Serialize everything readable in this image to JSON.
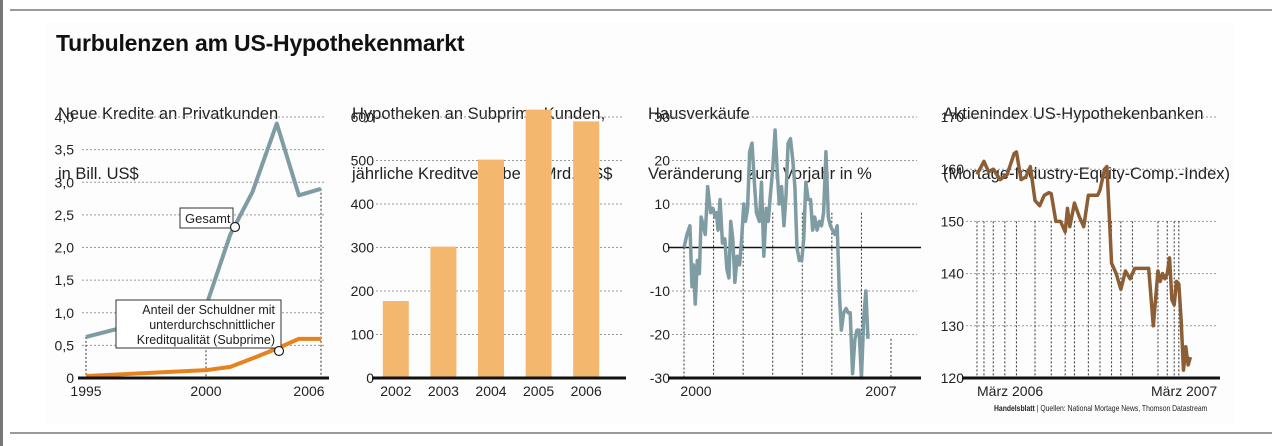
{
  "title": "Turbulenzen am US-Hypothekenmarkt",
  "credit": {
    "brand": "Handelsblatt",
    "separator": " | ",
    "sources": "Quellen: National Mortage News, Thomson Datastream"
  },
  "colors": {
    "gray_line": "#7f9ca3",
    "orange_line": "#e8821e",
    "bar": "#f4b76e",
    "brown_line": "#8c5e36",
    "grid": "#999999",
    "axis": "#111111"
  },
  "chart_data": [
    {
      "type": "line",
      "title": "Neue Kredite an Privatkunden\nin Bill. US$",
      "subtitle_lines": [
        "Neue Kredite an Privatkunden",
        "in Bill. US$"
      ],
      "xlabel": "",
      "ylabel": "",
      "xlim": [
        1995,
        2006
      ],
      "ylim": [
        0,
        4.0
      ],
      "yticks": [
        0,
        0.5,
        1.0,
        1.5,
        2.0,
        2.5,
        3.0,
        3.5,
        4.0
      ],
      "ytick_labels": [
        "0",
        "0,5",
        "1,0",
        "1,5",
        "2,0",
        "2,5",
        "3,0",
        "3,5",
        "4,0"
      ],
      "xticks": [
        1995,
        2000,
        2006
      ],
      "xtick_labels": [
        "1995",
        "2000",
        "2006"
      ],
      "grid": true,
      "series": [
        {
          "name": "Gesamt",
          "x": [
            1995,
            2000,
            2001.1,
            2002.1,
            2003.2,
            2004.2,
            2005.2
          ],
          "values": [
            0.63,
            1.1,
            2.2,
            2.85,
            3.9,
            2.8,
            2.9
          ]
        },
        {
          "name": "Anteil der Schuldner mit unterdurchschnittlicher Kreditqualität (Subprime)",
          "x": [
            1995,
            2000,
            2001.1,
            2002.1,
            2003.2,
            2004.2,
            2005.2
          ],
          "values": [
            0.03,
            0.12,
            0.17,
            0.3,
            0.45,
            0.6,
            0.6
          ]
        }
      ],
      "annotations": [
        {
          "text": "Gesamt",
          "x": 2001.35,
          "y": 2.33
        },
        {
          "text": "Anteil der Schuldner mit\nunterdurchschnittlicher\nKreditqualität (Subprime)",
          "lines": [
            "Anteil der Schuldner mit",
            "unterdurchschnittlicher",
            "Kreditqualität (Subprime)"
          ],
          "x": 2003.0,
          "y": 0.42
        }
      ]
    },
    {
      "type": "bar",
      "title": "Hypotheken an Subprime-Kunden,\njährliche Kreditvergabe in Mrd. US$",
      "subtitle_lines": [
        "Hypotheken an Subprime-Kunden,",
        "jährliche Kreditvergabe in Mrd. US$"
      ],
      "categories": [
        "2002",
        "2003",
        "2004",
        "2005",
        "2006"
      ],
      "values": [
        177,
        302,
        502,
        617,
        590
      ],
      "ylim": [
        0,
        600
      ],
      "yticks": [
        0,
        100,
        200,
        300,
        400,
        500,
        600
      ],
      "ytick_labels": [
        "0",
        "100",
        "200",
        "300",
        "400",
        "500",
        "600"
      ],
      "grid": true,
      "xlabel": "",
      "ylabel": ""
    },
    {
      "type": "line",
      "title": "Hausverkäufe\nVeränderung zum Vorjahr in %",
      "subtitle_lines": [
        "Hausverkäufe",
        "Veränderung zum Vorjahr in %"
      ],
      "xlim": [
        2000,
        2007.3
      ],
      "ylim": [
        -30,
        30
      ],
      "yticks": [
        -30,
        -20,
        -10,
        0,
        10,
        20,
        30
      ],
      "ytick_labels": [
        "-30",
        "-20",
        "-10",
        "0",
        "10",
        "20",
        "30"
      ],
      "xticks": [
        2000,
        2007
      ],
      "xtick_labels": [
        "2000",
        "2007"
      ],
      "grid": true,
      "series": [
        {
          "name": "Hausverkäufe",
          "x": [
            2000.0,
            2000.1,
            2000.2,
            2000.27,
            2000.32,
            2000.38,
            2000.45,
            2000.52,
            2000.58,
            2000.65,
            2000.72,
            2000.8,
            2000.9,
            2000.98,
            2001.05,
            2001.1,
            2001.15,
            2001.22,
            2001.3,
            2001.38,
            2001.45,
            2001.52,
            2001.58,
            2001.65,
            2001.72,
            2001.8,
            2001.88,
            2001.95,
            2002.02,
            2002.08,
            2002.15,
            2002.22,
            2002.3,
            2002.38,
            2002.45,
            2002.55,
            2002.62,
            2002.7,
            2002.78,
            2002.85,
            2002.92,
            2003.0,
            2003.08,
            2003.15,
            2003.22,
            2003.3,
            2003.38,
            2003.45,
            2003.52,
            2003.6,
            2003.68,
            2003.75,
            2003.82,
            2003.9,
            2003.98,
            2004.05,
            2004.12,
            2004.2,
            2004.28,
            2004.35,
            2004.42,
            2004.5,
            2004.58,
            2004.65,
            2004.72,
            2004.8,
            2004.88,
            2004.95,
            2005.02,
            2005.1,
            2005.18,
            2005.25,
            2005.32,
            2005.4,
            2005.48,
            2005.55,
            2005.62,
            2005.7,
            2005.78,
            2005.85,
            2005.92,
            2006.0,
            2006.08,
            2006.15,
            2006.22,
            2006.3,
            2006.38,
            2006.45,
            2006.52,
            2006.6,
            2006.68,
            2006.75,
            2006.82,
            2006.9,
            2006.97
          ],
          "values": [
            0,
            3,
            5,
            -9,
            -4,
            -13,
            -3,
            -6,
            7,
            5,
            3,
            14,
            8,
            9,
            7,
            8,
            4,
            11,
            1,
            2,
            -5,
            -7,
            6,
            2,
            -8,
            -2,
            -4,
            2,
            10,
            6,
            9,
            22,
            24,
            15,
            8,
            6,
            15,
            -2,
            9,
            6,
            12,
            18,
            27,
            18,
            10,
            14,
            5,
            12,
            24,
            25,
            20,
            14,
            0,
            -3,
            -3,
            2,
            15,
            11,
            11,
            4,
            7,
            4,
            6,
            5,
            8,
            22,
            7,
            5,
            4,
            3,
            5,
            -10,
            -19,
            -15,
            -14,
            -15,
            -15,
            -29,
            -21,
            -19,
            -19,
            -30,
            -16,
            -10,
            -21,
            -21,
            -21,
            -21,
            -21,
            -21,
            -21,
            -21,
            -21,
            -21,
            -21
          ]
        }
      ]
    },
    {
      "type": "line",
      "title": "Aktienindex US-Hypothekenbanken\n(Mortage-Industry-Equity-Comp.-Index)",
      "subtitle_lines": [
        "Aktienindex US-Hypothekenbanken",
        "(Mortage-Industry-Equity-Comp.-Index)"
      ],
      "xlim": [
        0,
        100
      ],
      "ylim": [
        120,
        170
      ],
      "yticks": [
        120,
        130,
        140,
        150,
        160,
        170
      ],
      "ytick_labels": [
        "120",
        "130",
        "140",
        "150",
        "160",
        "170"
      ],
      "xticks": [
        3,
        91
      ],
      "xtick_labels": [
        "März 2006",
        "März 2007"
      ],
      "grid": true,
      "series": [
        {
          "name": "Index",
          "x": [
            0,
            3,
            5,
            7,
            10,
            13,
            16,
            17,
            19,
            21,
            23,
            25,
            27,
            29,
            31,
            32,
            34,
            36,
            38,
            39,
            40,
            42,
            44,
            46,
            48,
            50,
            52,
            53,
            55,
            56,
            58,
            60,
            62,
            64,
            66,
            68,
            70,
            72,
            74,
            76,
            78,
            79,
            80,
            81,
            82,
            83,
            84,
            85,
            86,
            87,
            88,
            89,
            90,
            91,
            92,
            93,
            94,
            95,
            96
          ],
          "values": [
            159,
            161.5,
            159.5,
            160,
            158,
            159,
            163,
            163.3,
            158,
            158.5,
            160.5,
            154,
            153,
            155,
            155.5,
            155.3,
            150,
            150,
            148,
            152.5,
            149,
            153.5,
            151,
            149,
            155,
            155,
            155,
            156,
            160,
            160.5,
            142,
            140,
            137,
            140.5,
            139,
            141,
            141,
            141,
            141,
            130,
            140.5,
            138.5,
            140,
            139,
            140,
            143,
            135,
            134,
            138.5,
            138,
            131,
            121.5,
            126,
            122.5,
            124,
            124,
            124,
            124,
            124
          ]
        }
      ]
    }
  ]
}
